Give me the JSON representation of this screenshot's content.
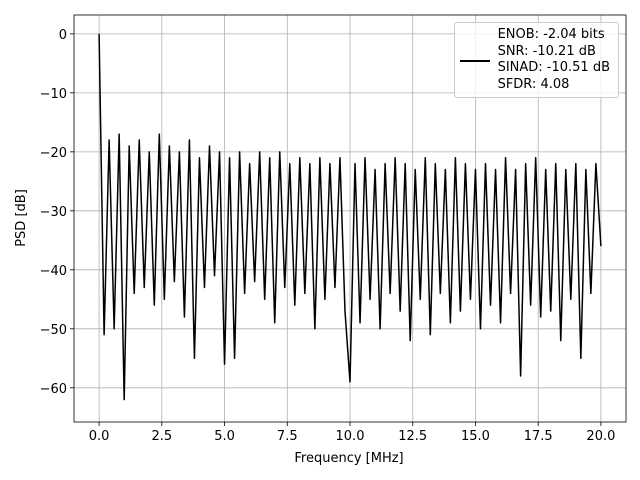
{
  "chart_data": {
    "type": "line",
    "xlabel": "Frequency [MHz]",
    "ylabel": "PSD [dB]",
    "x": [
      0,
      0.2,
      0.4,
      0.6,
      0.8,
      1.0,
      1.2,
      1.4,
      1.6,
      1.8,
      2.0,
      2.2,
      2.4,
      2.6,
      2.8,
      3.0,
      3.2,
      3.4,
      3.6,
      3.8,
      4.0,
      4.2,
      4.4,
      4.6,
      4.8,
      5.0,
      5.2,
      5.4,
      5.6,
      5.8,
      6.0,
      6.2,
      6.4,
      6.6,
      6.8,
      7.0,
      7.2,
      7.4,
      7.6,
      7.8,
      8.0,
      8.2,
      8.4,
      8.6,
      8.8,
      9.0,
      9.2,
      9.4,
      9.6,
      9.8,
      10.0,
      10.2,
      10.4,
      10.6,
      10.8,
      11.0,
      11.2,
      11.4,
      11.6,
      11.8,
      12.0,
      12.2,
      12.4,
      12.6,
      12.8,
      13.0,
      13.2,
      13.4,
      13.6,
      13.8,
      14.0,
      14.2,
      14.4,
      14.6,
      14.8,
      15.0,
      15.2,
      15.4,
      15.6,
      15.8,
      16.0,
      16.2,
      16.4,
      16.6,
      16.8,
      17.0,
      17.2,
      17.4,
      17.6,
      17.8,
      18.0,
      18.2,
      18.4,
      18.6,
      18.8,
      19.0,
      19.2,
      19.4,
      19.6,
      19.8,
      20.0
    ],
    "series": [
      {
        "name": "ENOB: -2.04 bits\nSNR: -10.21 dB\nSINAD: -10.51 dB\nSFDR: 4.08",
        "color": "#000000",
        "values": [
          0,
          -51,
          -18,
          -50,
          -17,
          -62,
          -19,
          -44,
          -18,
          -43,
          -20,
          -46,
          -17,
          -45,
          -19,
          -42,
          -20,
          -48,
          -18,
          -55,
          -21,
          -43,
          -19,
          -41,
          -20,
          -56,
          -21,
          -55,
          -20,
          -44,
          -22,
          -42,
          -20,
          -45,
          -21,
          -49,
          -20,
          -43,
          -22,
          -46,
          -21,
          -44,
          -22,
          -50,
          -21,
          -45,
          -22,
          -43,
          -21,
          -47,
          -59,
          -22,
          -49,
          -21,
          -45,
          -23,
          -50,
          -22,
          -44,
          -21,
          -47,
          -22,
          -52,
          -23,
          -45,
          -21,
          -51,
          -22,
          -44,
          -23,
          -49,
          -21,
          -47,
          -22,
          -45,
          -23,
          -50,
          -22,
          -46,
          -23,
          -49,
          -21,
          -44,
          -23,
          -58,
          -22,
          -46,
          -21,
          -48,
          -23,
          -47,
          -22,
          -52,
          -23,
          -45,
          -22,
          -55,
          -23,
          -44,
          -22,
          -36
        ]
      }
    ],
    "xlim": [
      -1.0,
      21.0
    ],
    "ylim": [
      -65.8,
      3.2
    ],
    "xticks": [
      {
        "value": 0,
        "label": "0.0"
      },
      2.5,
      {
        "value": 5,
        "label": "5.0"
      },
      7.5,
      {
        "value": 10,
        "label": "10.0"
      },
      12.5,
      {
        "value": 15,
        "label": "15.0"
      },
      17.5,
      {
        "value": 20,
        "label": "20.0"
      }
    ],
    "yticks": [
      {
        "value": -60,
        "label": "−60"
      },
      {
        "value": -50,
        "label": "−50"
      },
      {
        "value": -40,
        "label": "−40"
      },
      {
        "value": -30,
        "label": "−30"
      },
      {
        "value": -20,
        "label": "−20"
      },
      {
        "value": -10,
        "label": "−10"
      },
      0
    ],
    "grid": true,
    "legend": "upper right"
  }
}
